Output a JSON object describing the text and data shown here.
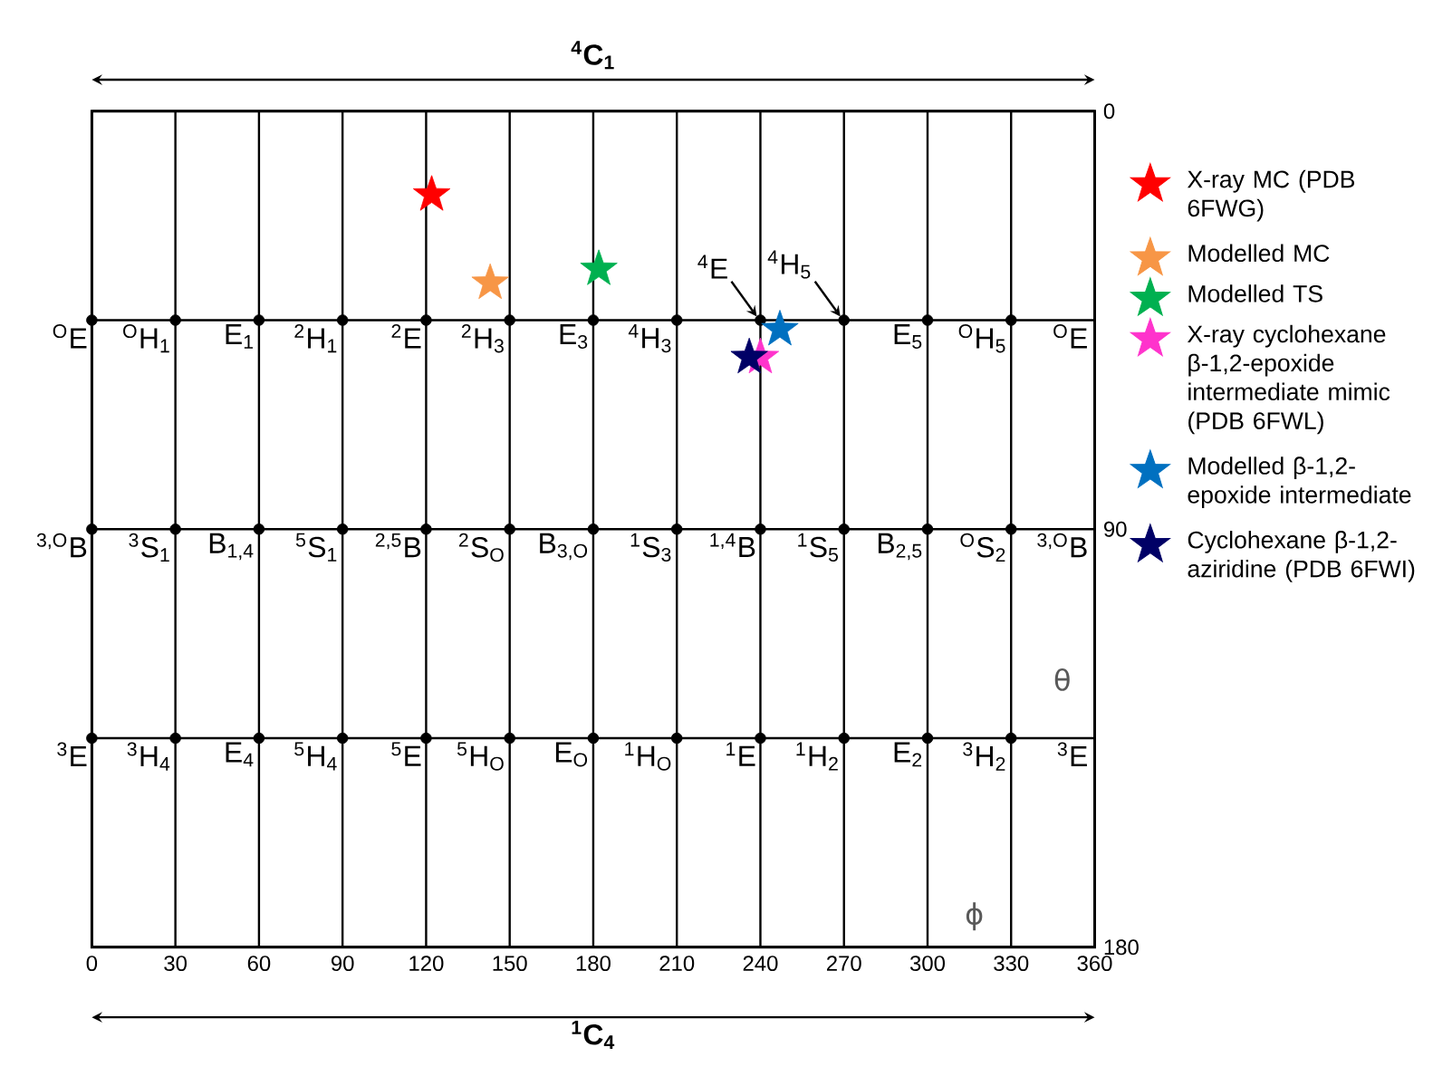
{
  "chart_data": {
    "type": "scatter",
    "xlabel": "ϕ",
    "ylabel": "θ",
    "xlim": [
      0,
      360
    ],
    "ylim": [
      180,
      0
    ],
    "xticks": [
      0,
      30,
      60,
      90,
      120,
      150,
      180,
      210,
      240,
      270,
      300,
      330,
      360
    ],
    "yticks": [
      0,
      {
        "value": 45,
        "label": null
      },
      90,
      {
        "value": 135,
        "label": null
      },
      180
    ],
    "grid": true,
    "legend": "right",
    "series": [
      {
        "color": "#000000",
        "marker": "circle",
        "x": [
          0,
          30,
          60,
          90,
          120,
          150,
          180,
          210,
          240,
          270,
          300,
          330,
          0,
          30,
          60,
          90,
          120,
          150,
          180,
          210,
          240,
          270,
          300,
          330,
          0,
          30,
          60,
          90,
          120,
          150,
          180,
          210,
          240,
          270,
          300,
          330
        ],
        "values": [
          45,
          45,
          45,
          45,
          45,
          45,
          45,
          45,
          45,
          45,
          45,
          45,
          90,
          90,
          90,
          90,
          90,
          90,
          90,
          90,
          90,
          90,
          90,
          90,
          135,
          135,
          135,
          135,
          135,
          135,
          135,
          135,
          135,
          135,
          135,
          135
        ]
      },
      {
        "name": "X-ray MC (PDB 6FWG)",
        "color": "#ff0000",
        "marker": "star",
        "x": [
          122
        ],
        "values": [
          18
        ]
      },
      {
        "name": "Modelled MC",
        "color": "#f79646",
        "marker": "star",
        "x": [
          143
        ],
        "values": [
          37
        ]
      },
      {
        "name": "Modelled TS",
        "color": "#00b050",
        "marker": "star",
        "x": [
          182
        ],
        "values": [
          34
        ]
      },
      {
        "name": "X-ray cyclohexane β-1,2-epoxide intermediate mimic (PDB 6FWL)",
        "color": "#ff33cc",
        "marker": "star",
        "x": [
          240
        ],
        "values": [
          53
        ]
      },
      {
        "name": "Modelled β-1,2-epoxide intermediate",
        "color": "#0070c0",
        "marker": "star",
        "x": [
          247
        ],
        "values": [
          47
        ]
      },
      {
        "name": "Cyclohexane β-1,2-aziridine (PDB 6FWI)",
        "color": "#000066",
        "marker": "star",
        "x": [
          236
        ],
        "values": [
          53
        ]
      }
    ],
    "annotations": [
      "$^{4}$C$_{1}$",
      "$^{1}$C$_{4}$",
      {
        "text": "$^{O}$E",
        "x": 0,
        "y": 45
      },
      {
        "text": "$^{O}$H$_{1}$",
        "x": 30,
        "y": 45
      },
      {
        "text": "E$_{1}$",
        "x": 60,
        "y": 45
      },
      {
        "text": "$^{2}$H$_{1}$",
        "x": 90,
        "y": 45
      },
      {
        "text": "$^{2}$E",
        "x": 120,
        "y": 45
      },
      {
        "text": "$^{2}$H$_{3}$",
        "x": 150,
        "y": 45
      },
      {
        "text": "E$_{3}$",
        "x": 180,
        "y": 45
      },
      {
        "text": "$^{4}$H$_{3}$",
        "x": 210,
        "y": 45
      },
      {
        "text": "$^{4}$E",
        "x": 240,
        "y": 45
      },
      {
        "text": "$^{4}$H$_{5}$",
        "x": 270,
        "y": 45
      },
      {
        "text": "E$_{5}$",
        "x": 300,
        "y": 45
      },
      {
        "text": "$^{O}$H$_{5}$",
        "x": 330,
        "y": 45
      },
      "$^{O}$E",
      {
        "text": "$^{3,O}$B",
        "x": 0,
        "y": 90
      },
      {
        "text": "$^{3}$S$_{1}$",
        "x": 30,
        "y": 90
      },
      {
        "text": "B$_{1,4}$",
        "x": 60,
        "y": 90
      },
      {
        "text": "$^{5}$S$_{1}$",
        "x": 90,
        "y": 90
      },
      {
        "text": "$^{2,5}$B",
        "x": 120,
        "y": 90
      },
      {
        "text": "$^{2}$S$_{O}$",
        "x": 150,
        "y": 90
      },
      {
        "text": "B$_{3,O}$",
        "x": 180,
        "y": 90
      },
      {
        "text": "$^{1}$S$_{3}$",
        "x": 210,
        "y": 90
      },
      {
        "text": "$^{1,4}$B",
        "x": 240,
        "y": 90
      },
      {
        "text": "$^{1}$S$_{5}$",
        "x": 270,
        "y": 90
      },
      {
        "text": "B$_{2,5}$",
        "x": 300,
        "y": 90
      },
      {
        "text": "$^{O}$S$_{2}$",
        "x": 330,
        "y": 90
      },
      "$^{3,O}$B",
      {
        "text": "$^{3}$E",
        "x": 0,
        "y": 135
      },
      {
        "text": "$^{3}$H$_{4}$",
        "x": 30,
        "y": 135
      },
      {
        "text": "E$_{4}$",
        "x": 60,
        "y": 135
      },
      {
        "text": "$^{5}$H$_{4}$",
        "x": 90,
        "y": 135
      },
      {
        "text": "$^{5}$E",
        "x": 120,
        "y": 135
      },
      {
        "text": "$^{5}$H$_{O}$",
        "x": 150,
        "y": 135
      },
      {
        "text": "E$_{O}$",
        "x": 180,
        "y": 135
      },
      {
        "text": "$^{1}$H$_{O}$",
        "x": 210,
        "y": 135
      },
      {
        "text": "$^{1}$E",
        "x": 240,
        "y": 135
      },
      {
        "text": "$^{1}$H$_{2}$",
        "x": 270,
        "y": 135
      },
      {
        "text": "E$_{2}$",
        "x": 300,
        "y": 135
      },
      {
        "text": "$^{3}$H$_{2}$",
        "x": 330,
        "y": 135
      },
      "$^{3}$E"
    ]
  }
}
